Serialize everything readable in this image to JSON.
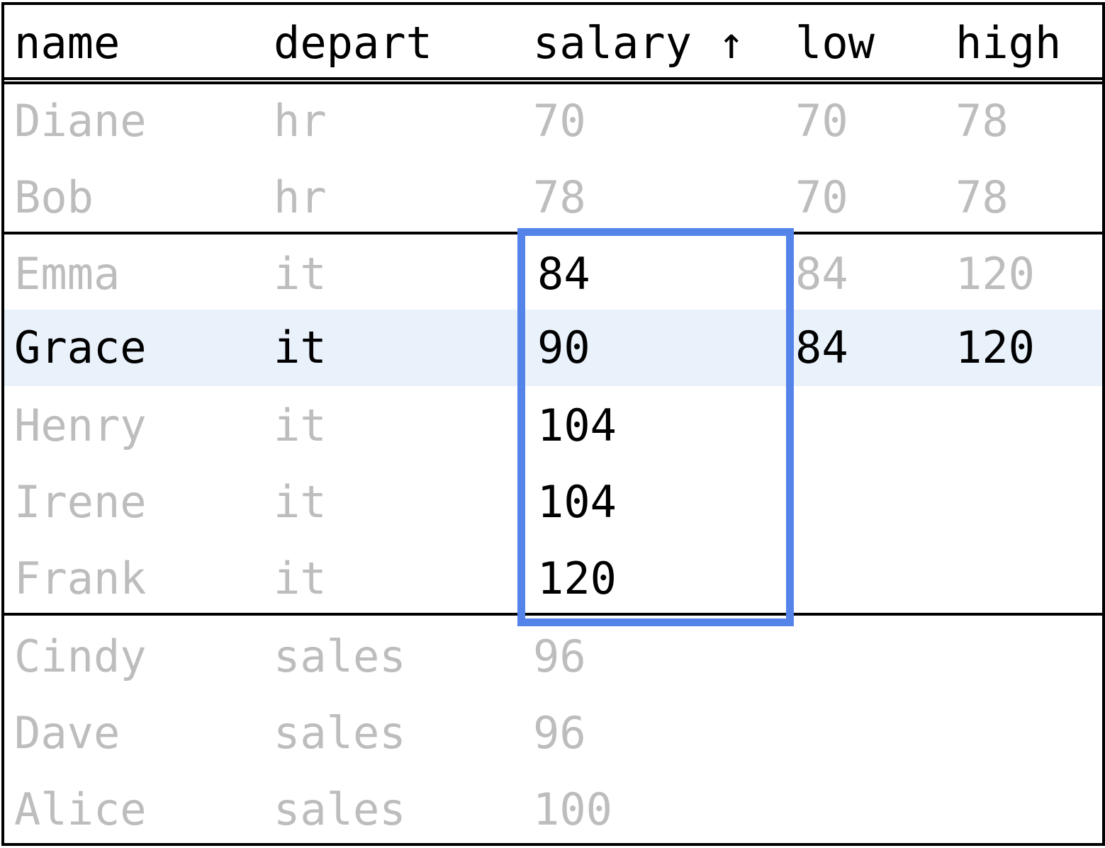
{
  "columns": {
    "name": "name",
    "depart": "depart",
    "salary": "salary ↑",
    "low": "low",
    "high": "high"
  },
  "colors": {
    "window_border": "#5484e9",
    "current_row_bg": "#e9f1fb",
    "dim_text": "#bdbdbd",
    "active_text": "#000000"
  },
  "rows": [
    {
      "name": "Diane",
      "depart": "hr",
      "salary": "70",
      "low": "70",
      "high": "78"
    },
    {
      "name": "Bob",
      "depart": "hr",
      "salary": "78",
      "low": "70",
      "high": "78"
    },
    {
      "name": "Emma",
      "depart": "it",
      "salary": "84",
      "low": "84",
      "high": "120"
    },
    {
      "name": "Grace",
      "depart": "it",
      "salary": "90",
      "low": "84",
      "high": "120"
    },
    {
      "name": "Henry",
      "depart": "it",
      "salary": "104",
      "low": "",
      "high": ""
    },
    {
      "name": "Irene",
      "depart": "it",
      "salary": "104",
      "low": "",
      "high": ""
    },
    {
      "name": "Frank",
      "depart": "it",
      "salary": "120",
      "low": "",
      "high": ""
    },
    {
      "name": "Cindy",
      "depart": "sales",
      "salary": "96",
      "low": "",
      "high": ""
    },
    {
      "name": "Dave",
      "depart": "sales",
      "salary": "96",
      "low": "",
      "high": ""
    },
    {
      "name": "Alice",
      "depart": "sales",
      "salary": "100",
      "low": "",
      "high": ""
    }
  ]
}
